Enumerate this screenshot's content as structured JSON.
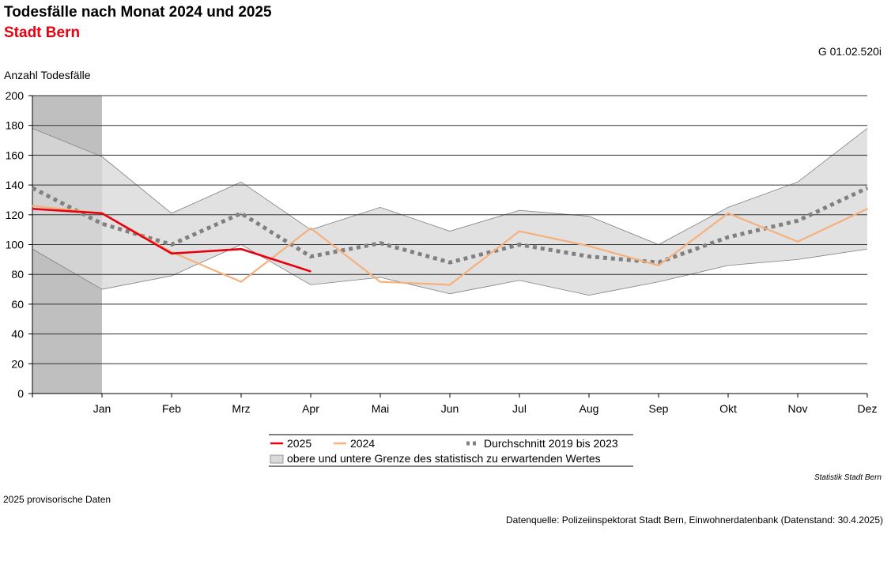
{
  "title": "Todesfälle nach Monat 2024 und 2025",
  "subtitle": "Stadt Bern",
  "graphic_code": "G 01.02.520i",
  "brand": "Statistik Stadt Bern",
  "footnote": "2025 provisorische Daten",
  "source": "Datenquelle: Polizeiinspektorat Stadt Bern, Einwohnerdatenbank (Datenstand: 30.4.2025)",
  "colors": {
    "series_2025": "#e8000f",
    "series_2024": "#f5b07d",
    "average": "#808080",
    "band_fill": "#d9d9d9",
    "band_edge": "#808080",
    "shade": "#bfbfbf",
    "subtitle": "#e8000f"
  },
  "chart_data": {
    "type": "line",
    "title": "Todesfälle nach Monat 2024 und 2025",
    "subtitle": "Stadt Bern",
    "ylabel": "Anzahl Todesfälle",
    "xlabel": "",
    "ylim": [
      0,
      200
    ],
    "yticks": [
      0,
      20,
      40,
      60,
      80,
      100,
      120,
      140,
      160,
      180,
      200
    ],
    "grid": true,
    "categories": [
      "Jan",
      "Feb",
      "Mrz",
      "Apr",
      "Mai",
      "Jun",
      "Jul",
      "Aug",
      "Sep",
      "Okt",
      "Nov",
      "Dez"
    ],
    "x_start": 0,
    "series": [
      {
        "name": "2025",
        "style": "solid",
        "color": "#e8000f",
        "x": [
          0,
          1,
          2,
          3,
          4
        ],
        "values": [
          124,
          121,
          94,
          97,
          82
        ]
      },
      {
        "name": "2024",
        "style": "solid",
        "color": "#f5b07d",
        "x": [
          0,
          1,
          2,
          3,
          4,
          5,
          6,
          7,
          8,
          9,
          10,
          11,
          12
        ],
        "values": [
          126,
          121,
          95,
          75,
          111,
          75,
          73,
          109,
          99,
          86,
          121,
          102,
          124
        ]
      },
      {
        "name": "Durchschnitt 2019 bis 2023",
        "style": "dotted",
        "color": "#808080",
        "x": [
          0,
          1,
          2,
          3,
          4,
          5,
          6,
          7,
          8,
          9,
          10,
          11,
          12
        ],
        "values": [
          138,
          114,
          100,
          121,
          92,
          101,
          88,
          100,
          92,
          88,
          105,
          116,
          138
        ]
      }
    ],
    "band": {
      "name": "obere und untere Grenze des statistisch zu erwartenden Wertes",
      "x": [
        0,
        1,
        2,
        3,
        4,
        5,
        6,
        7,
        8,
        9,
        10,
        11,
        12
      ],
      "upper": [
        178,
        159,
        121,
        142,
        110,
        125,
        109,
        123,
        119,
        100,
        125,
        142,
        178
      ],
      "lower": [
        97,
        70,
        79,
        100,
        73,
        78,
        67,
        76,
        66,
        75,
        86,
        90,
        97
      ]
    },
    "shaded_region": {
      "x_from": 0,
      "x_to": 1
    },
    "legend": {
      "placement": "bottom-center",
      "entries": [
        "2025",
        "2024",
        "Durchschnitt 2019 bis 2023",
        "obere und untere Grenze des statistisch zu erwartenden Wertes"
      ]
    }
  }
}
